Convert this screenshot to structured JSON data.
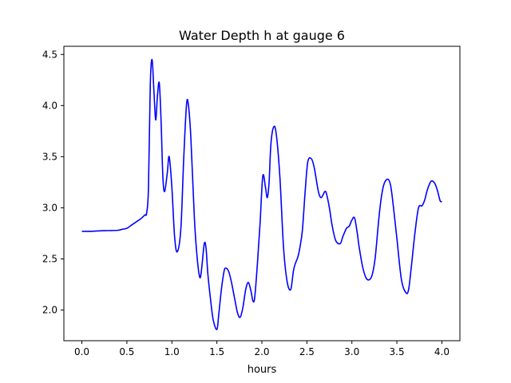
{
  "chart_data": {
    "type": "line",
    "title": "Water Depth h at gauge 6",
    "xlabel": "hours",
    "ylabel": "",
    "xlim": [
      -0.2,
      4.2
    ],
    "ylim": [
      1.7,
      4.58
    ],
    "xticks": [
      0.0,
      0.5,
      1.0,
      1.5,
      2.0,
      2.5,
      3.0,
      3.5,
      4.0
    ],
    "xtick_labels": [
      "0.0",
      "0.5",
      "1.0",
      "1.5",
      "2.0",
      "2.5",
      "3.0",
      "3.5",
      "4.0"
    ],
    "yticks": [
      2.0,
      2.5,
      3.0,
      3.5,
      4.0,
      4.5
    ],
    "ytick_labels": [
      "2.0",
      "2.5",
      "3.0",
      "3.5",
      "4.0",
      "4.5"
    ],
    "grid": false,
    "series": [
      {
        "color": "#0000ff",
        "x": [
          0.0,
          0.1,
          0.2,
          0.3,
          0.4,
          0.45,
          0.5,
          0.55,
          0.6,
          0.65,
          0.7,
          0.72,
          0.74,
          0.76,
          0.78,
          0.8,
          0.82,
          0.84,
          0.86,
          0.88,
          0.9,
          0.92,
          0.95,
          0.97,
          1.0,
          1.03,
          1.06,
          1.1,
          1.13,
          1.16,
          1.18,
          1.21,
          1.25,
          1.28,
          1.31,
          1.33,
          1.36,
          1.38,
          1.4,
          1.43,
          1.46,
          1.5,
          1.52,
          1.55,
          1.58,
          1.6,
          1.63,
          1.66,
          1.7,
          1.73,
          1.76,
          1.79,
          1.82,
          1.85,
          1.88,
          1.9,
          1.92,
          1.95,
          1.98,
          2.01,
          2.04,
          2.06,
          2.08,
          2.1,
          2.13,
          2.16,
          2.2,
          2.24,
          2.28,
          2.32,
          2.35,
          2.37,
          2.4,
          2.42,
          2.45,
          2.48,
          2.51,
          2.55,
          2.58,
          2.6,
          2.63,
          2.66,
          2.7,
          2.72,
          2.75,
          2.78,
          2.82,
          2.87,
          2.9,
          2.94,
          2.97,
          3.0,
          3.03,
          3.06,
          3.08,
          3.12,
          3.16,
          3.2,
          3.23,
          3.26,
          3.3,
          3.33,
          3.36,
          3.4,
          3.43,
          3.46,
          3.5,
          3.55,
          3.6,
          3.63,
          3.66,
          3.7,
          3.74,
          3.78,
          3.81,
          3.84,
          3.88,
          3.92,
          3.95,
          3.98,
          4.0
        ],
        "y": [
          2.77,
          2.77,
          2.775,
          2.777,
          2.78,
          2.79,
          2.8,
          2.83,
          2.86,
          2.89,
          2.93,
          2.95,
          3.2,
          4.2,
          4.45,
          4.15,
          3.86,
          4.1,
          4.22,
          3.85,
          3.3,
          3.16,
          3.35,
          3.5,
          3.2,
          2.72,
          2.57,
          2.8,
          3.45,
          3.98,
          4.03,
          3.7,
          2.9,
          2.52,
          2.32,
          2.4,
          2.65,
          2.6,
          2.35,
          2.1,
          1.9,
          1.81,
          1.95,
          2.2,
          2.38,
          2.41,
          2.38,
          2.28,
          2.1,
          1.97,
          1.93,
          2.03,
          2.2,
          2.27,
          2.18,
          2.09,
          2.12,
          2.45,
          2.85,
          3.31,
          3.2,
          3.1,
          3.25,
          3.62,
          3.79,
          3.72,
          3.3,
          2.62,
          2.28,
          2.2,
          2.38,
          2.45,
          2.52,
          2.6,
          2.78,
          3.15,
          3.45,
          3.48,
          3.4,
          3.3,
          3.15,
          3.1,
          3.16,
          3.13,
          3.0,
          2.83,
          2.68,
          2.65,
          2.72,
          2.8,
          2.82,
          2.88,
          2.9,
          2.75,
          2.62,
          2.42,
          2.31,
          2.3,
          2.36,
          2.52,
          2.9,
          3.12,
          3.24,
          3.28,
          3.22,
          3.02,
          2.7,
          2.3,
          2.17,
          2.2,
          2.42,
          2.75,
          3.0,
          3.02,
          3.08,
          3.18,
          3.26,
          3.24,
          3.17,
          3.07,
          3.06
        ]
      }
    ]
  }
}
